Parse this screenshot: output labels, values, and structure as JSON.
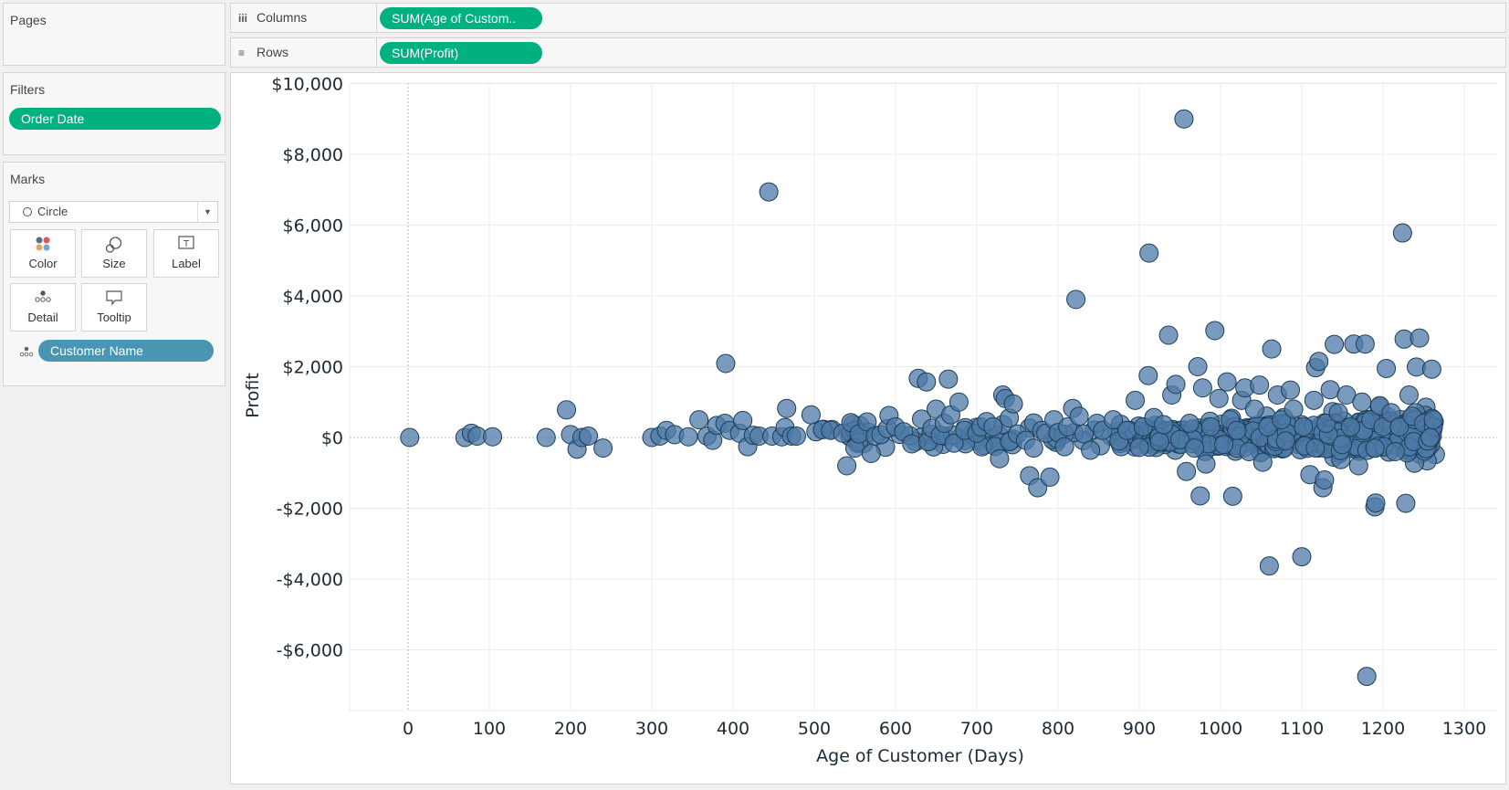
{
  "pages": {
    "title": "Pages"
  },
  "filters": {
    "title": "Filters",
    "pills": [
      {
        "label": "Order Date",
        "color": "#00b180"
      }
    ]
  },
  "marks": {
    "title": "Marks",
    "mark_type": "Circle",
    "cards": [
      {
        "label": "Color",
        "icon": "color-dots-icon"
      },
      {
        "label": "Size",
        "icon": "size-icon"
      },
      {
        "label": "Label",
        "icon": "label-text-icon"
      },
      {
        "label": "Detail",
        "icon": "detail-dots-icon"
      },
      {
        "label": "Tooltip",
        "icon": "tooltip-speech-icon"
      }
    ],
    "detail_pill": {
      "label": "Customer Name",
      "icon": "detail-dots-icon",
      "color": "#4996b2"
    }
  },
  "shelves": {
    "columns": {
      "label": "Columns",
      "icon": "columns-icon",
      "pill": "SUM(Age of Custom.."
    },
    "rows": {
      "label": "Rows",
      "icon": "rows-icon",
      "pill": "SUM(Profit)"
    }
  },
  "colors": {
    "mark_fill": "#4e79a7",
    "mark_stroke": "#1d3d57",
    "pill_green": "#00b180",
    "pill_blue": "#4996b2"
  },
  "chart_data": {
    "type": "scatter",
    "title": "",
    "xlabel": "Age of Customer (Days)",
    "ylabel": "Profit",
    "xlim": [
      -70,
      1330
    ],
    "ylim": [
      -7500,
      10000
    ],
    "x_ticks": [
      0,
      100,
      200,
      300,
      400,
      500,
      600,
      700,
      800,
      900,
      1000,
      1100,
      1200,
      1300
    ],
    "y_ticks": [
      10000,
      8000,
      6000,
      4000,
      2000,
      0,
      -2000,
      -4000,
      -6000
    ],
    "y_tick_labels": [
      "$10,000",
      "$8,000",
      "$6,000",
      "$4,000",
      "$2,000",
      "$0",
      "-$2,000",
      "-$4,000",
      "-$6,000"
    ],
    "grid": true,
    "legend": "none",
    "points": [
      [
        2,
        0
      ],
      [
        70,
        0
      ],
      [
        78,
        120
      ],
      [
        85,
        40
      ],
      [
        104,
        20
      ],
      [
        170,
        0
      ],
      [
        195,
        780
      ],
      [
        200,
        80
      ],
      [
        208,
        -330
      ],
      [
        214,
        0
      ],
      [
        222,
        40
      ],
      [
        240,
        -300
      ],
      [
        300,
        0
      ],
      [
        310,
        40
      ],
      [
        318,
        200
      ],
      [
        328,
        80
      ],
      [
        345,
        20
      ],
      [
        358,
        500
      ],
      [
        368,
        40
      ],
      [
        375,
        -80
      ],
      [
        380,
        340
      ],
      [
        390,
        400
      ],
      [
        391,
        2090
      ],
      [
        396,
        200
      ],
      [
        408,
        120
      ],
      [
        412,
        480
      ],
      [
        418,
        -260
      ],
      [
        425,
        60
      ],
      [
        432,
        40
      ],
      [
        444,
        6940
      ],
      [
        448,
        40
      ],
      [
        460,
        20
      ],
      [
        464,
        280
      ],
      [
        466,
        820
      ],
      [
        472,
        40
      ],
      [
        478,
        40
      ],
      [
        496,
        640
      ],
      [
        502,
        160
      ],
      [
        510,
        220
      ],
      [
        520,
        200
      ],
      [
        535,
        120
      ],
      [
        540,
        -800
      ],
      [
        545,
        420
      ],
      [
        550,
        -300
      ],
      [
        555,
        100
      ],
      [
        565,
        440
      ],
      [
        570,
        -450
      ],
      [
        575,
        40
      ],
      [
        582,
        80
      ],
      [
        590,
        250
      ],
      [
        592,
        620
      ],
      [
        600,
        300
      ],
      [
        610,
        160
      ],
      [
        620,
        -180
      ],
      [
        628,
        1670
      ],
      [
        632,
        520
      ],
      [
        638,
        1570
      ],
      [
        640,
        -120
      ],
      [
        645,
        260
      ],
      [
        650,
        800
      ],
      [
        655,
        60
      ],
      [
        660,
        400
      ],
      [
        665,
        1650
      ],
      [
        668,
        640
      ],
      [
        672,
        -160
      ],
      [
        678,
        1000
      ],
      [
        685,
        200
      ],
      [
        700,
        120
      ],
      [
        705,
        300
      ],
      [
        712,
        450
      ],
      [
        720,
        300
      ],
      [
        728,
        -600
      ],
      [
        732,
        1200
      ],
      [
        735,
        1100
      ],
      [
        740,
        550
      ],
      [
        745,
        950
      ],
      [
        750,
        100
      ],
      [
        760,
        -80
      ],
      [
        765,
        -1080
      ],
      [
        770,
        -300
      ],
      [
        775,
        -1420
      ],
      [
        780,
        200
      ],
      [
        785,
        120
      ],
      [
        790,
        -1120
      ],
      [
        795,
        500
      ],
      [
        800,
        140
      ],
      [
        808,
        -260
      ],
      [
        812,
        300
      ],
      [
        818,
        820
      ],
      [
        822,
        3900
      ],
      [
        826,
        600
      ],
      [
        832,
        100
      ],
      [
        840,
        -360
      ],
      [
        848,
        400
      ],
      [
        855,
        200
      ],
      [
        868,
        500
      ],
      [
        875,
        -100
      ],
      [
        885,
        200
      ],
      [
        895,
        1050
      ],
      [
        900,
        -280
      ],
      [
        905,
        300
      ],
      [
        911,
        1750
      ],
      [
        912,
        5210
      ],
      [
        918,
        560
      ],
      [
        925,
        -120
      ],
      [
        930,
        360
      ],
      [
        936,
        2890
      ],
      [
        940,
        1200
      ],
      [
        945,
        1500
      ],
      [
        950,
        -60
      ],
      [
        955,
        9000
      ],
      [
        958,
        -960
      ],
      [
        962,
        400
      ],
      [
        968,
        -300
      ],
      [
        972,
        2000
      ],
      [
        975,
        -1650
      ],
      [
        978,
        1400
      ],
      [
        982,
        -750
      ],
      [
        988,
        300
      ],
      [
        993,
        3020
      ],
      [
        998,
        1100
      ],
      [
        1004,
        -200
      ],
      [
        1008,
        1570
      ],
      [
        1012,
        500
      ],
      [
        1015,
        -1660
      ],
      [
        1020,
        200
      ],
      [
        1026,
        1050
      ],
      [
        1030,
        1400
      ],
      [
        1035,
        -400
      ],
      [
        1042,
        800
      ],
      [
        1048,
        1480
      ],
      [
        1052,
        -700
      ],
      [
        1058,
        300
      ],
      [
        1063,
        2500
      ],
      [
        1060,
        -3630
      ],
      [
        1070,
        1200
      ],
      [
        1075,
        500
      ],
      [
        1080,
        -100
      ],
      [
        1086,
        1340
      ],
      [
        1090,
        800
      ],
      [
        1100,
        -3370
      ],
      [
        1102,
        300
      ],
      [
        1110,
        -1050
      ],
      [
        1115,
        1050
      ],
      [
        1117,
        1970
      ],
      [
        1121,
        2150
      ],
      [
        1126,
        -1420
      ],
      [
        1128,
        -1200
      ],
      [
        1130,
        400
      ],
      [
        1135,
        1350
      ],
      [
        1140,
        2630
      ],
      [
        1145,
        700
      ],
      [
        1150,
        -200
      ],
      [
        1155,
        1200
      ],
      [
        1160,
        300
      ],
      [
        1164,
        2640
      ],
      [
        1170,
        -800
      ],
      [
        1174,
        1000
      ],
      [
        1178,
        2640
      ],
      [
        1180,
        -6750
      ],
      [
        1185,
        500
      ],
      [
        1190,
        -1960
      ],
      [
        1191,
        -1850
      ],
      [
        1196,
        900
      ],
      [
        1200,
        300
      ],
      [
        1204,
        1950
      ],
      [
        1210,
        700
      ],
      [
        1215,
        -400
      ],
      [
        1220,
        300
      ],
      [
        1224,
        5780
      ],
      [
        1226,
        2780
      ],
      [
        1228,
        -1860
      ],
      [
        1232,
        1200
      ],
      [
        1236,
        600
      ],
      [
        1241,
        1990
      ],
      [
        1245,
        2810
      ],
      [
        1250,
        400
      ],
      [
        1255,
        -100
      ],
      [
        1260,
        1930
      ],
      [
        1262,
        300
      ],
      [
        1258,
        0
      ],
      [
        1262,
        500
      ]
    ]
  },
  "y_axis": {
    "title": "Profit"
  },
  "x_axis": {
    "title": "Age of Customer (Days)"
  }
}
